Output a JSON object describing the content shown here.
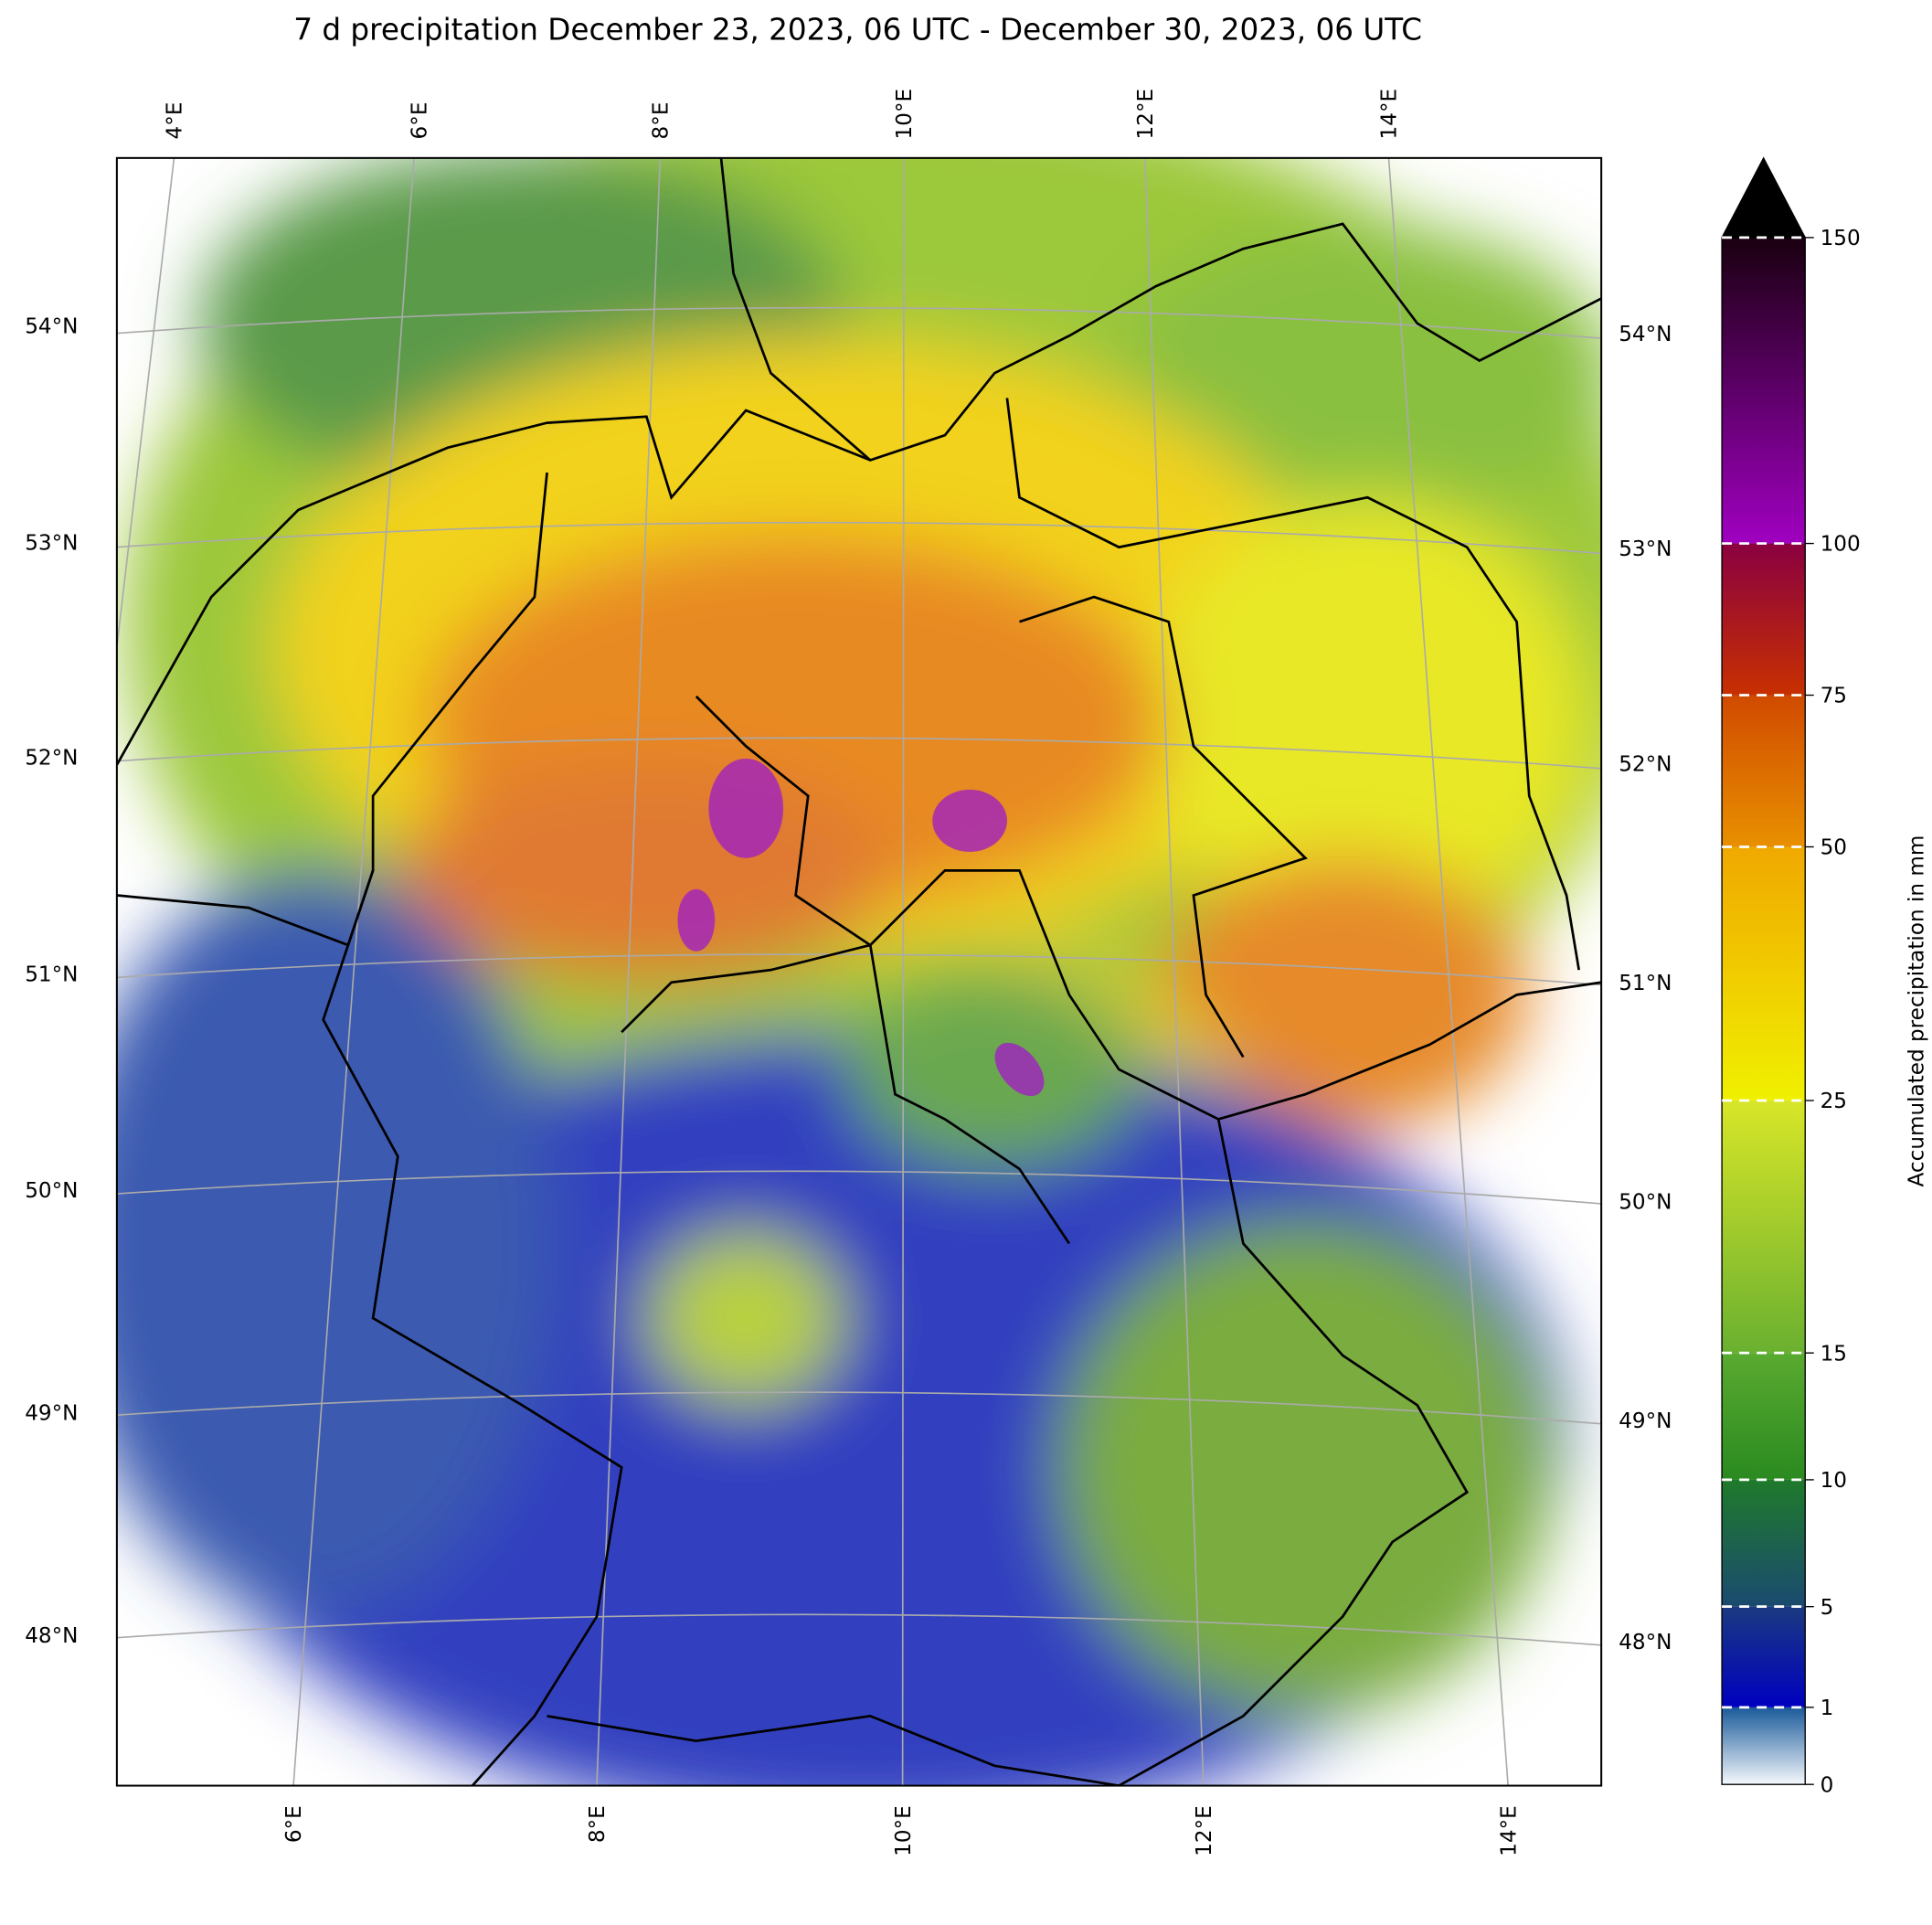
{
  "title": "7 d precipitation December 23, 2023, 06 UTC - December 30, 2023, 06 UTC",
  "map": {
    "lon_labels_top": [
      "4°E",
      "6°E",
      "8°E",
      "10°E",
      "12°E",
      "14°E"
    ],
    "lon_labels_bottom": [
      "6°E",
      "8°E",
      "10°E",
      "12°E",
      "14°E"
    ],
    "lat_labels_left": [
      "54°N",
      "53°N",
      "52°N",
      "51°N",
      "50°N",
      "49°N",
      "48°N"
    ],
    "lat_labels_right": [
      "54°N",
      "53°N",
      "52°N",
      "51°N",
      "50°N",
      "49°N",
      "48°N"
    ]
  },
  "colorbar": {
    "label": "Accumulated precipitation in mm",
    "ticks": [
      0,
      1,
      5,
      10,
      15,
      25,
      50,
      75,
      100,
      150
    ],
    "colors": [
      [
        "#f4f8fc",
        "#1a5a9a"
      ],
      [
        "#0000c0",
        "#1a3a80"
      ],
      [
        "#1a4a70",
        "#1f7a2a"
      ],
      [
        "#2a8a20",
        "#5aaa30"
      ],
      [
        "#6ab030",
        "#d8e628"
      ],
      [
        "#f0f000",
        "#f0a800"
      ],
      [
        "#e89000",
        "#d04a00"
      ],
      [
        "#c83000",
        "#8a0040"
      ],
      [
        "#a000c0",
        "#1a0010"
      ]
    ],
    "extend_color": "#000000"
  }
}
